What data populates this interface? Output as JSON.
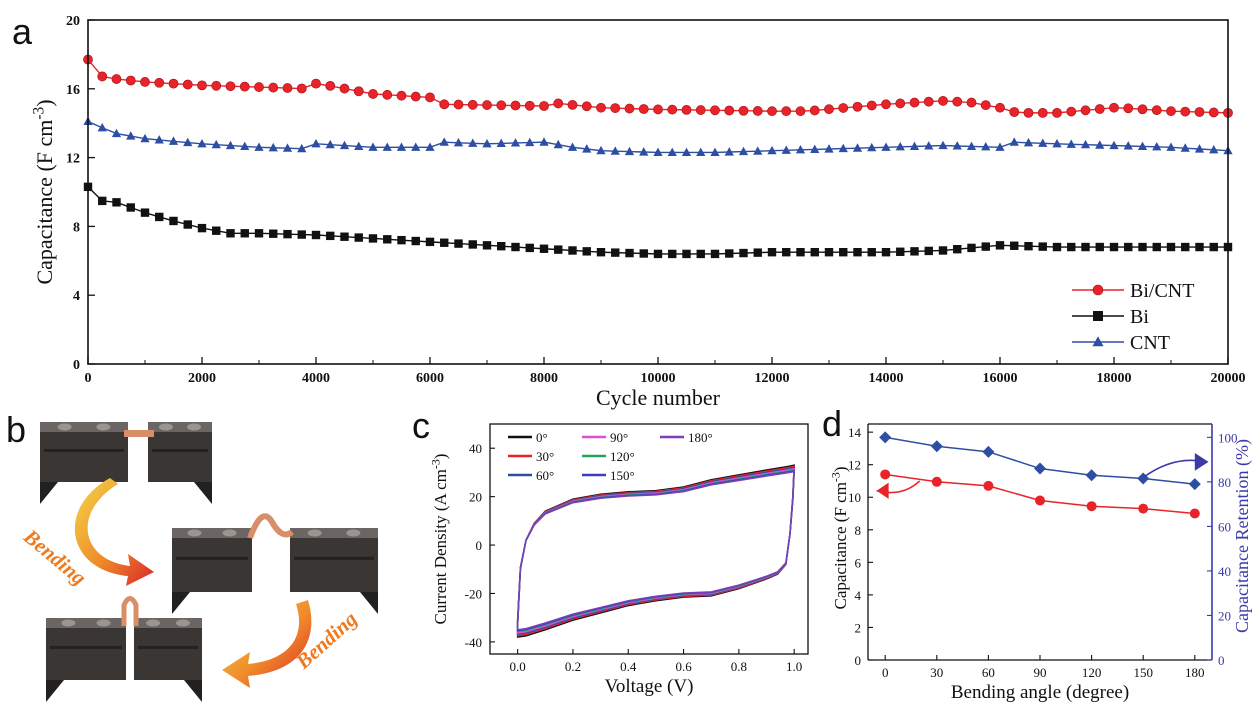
{
  "panel_labels": {
    "a": "a",
    "b": "b",
    "c": "c",
    "d": "d"
  },
  "photo_panel": {
    "bend_label_1": "Bending",
    "bend_label_2": "Bending"
  },
  "colors": {
    "red": "#e8232a",
    "black": "#111111",
    "blue": "#2d4ea3",
    "blue_axis": "#3a3aa8",
    "arrow_orange": "#f07a1e"
  },
  "chart_data": [
    {
      "id": "a",
      "type": "line",
      "xlabel": "Cycle number",
      "ylabel": "Capacitance (F cm",
      "ylabel_sup": "-3",
      "ylabel_close": ")",
      "xlim": [
        0,
        20000
      ],
      "ylim": [
        0,
        20
      ],
      "xticks": [
        0,
        2000,
        4000,
        6000,
        8000,
        10000,
        12000,
        14000,
        16000,
        18000,
        20000
      ],
      "yticks": [
        0,
        4,
        8,
        12,
        16,
        20
      ],
      "legend_position": "bottom-right",
      "series": [
        {
          "name": "Bi/CNT",
          "color": "#e8232a",
          "marker": "circle",
          "anchors": [
            [
              0,
              17.7
            ],
            [
              150,
              16.8
            ],
            [
              400,
              16.6
            ],
            [
              1000,
              16.4
            ],
            [
              2000,
              16.2
            ],
            [
              3000,
              16.1
            ],
            [
              3900,
              16.0
            ],
            [
              4000,
              16.3
            ],
            [
              4200,
              16.2
            ],
            [
              5000,
              15.7
            ],
            [
              6000,
              15.5
            ],
            [
              6200,
              15.1
            ],
            [
              8000,
              15.0
            ],
            [
              8100,
              15.2
            ],
            [
              9000,
              14.9
            ],
            [
              10000,
              14.8
            ],
            [
              12000,
              14.7
            ],
            [
              12600,
              14.7
            ],
            [
              14000,
              15.1
            ],
            [
              15000,
              15.3
            ],
            [
              15500,
              15.2
            ],
            [
              16000,
              14.9
            ],
            [
              16300,
              14.6
            ],
            [
              17000,
              14.6
            ],
            [
              18000,
              14.9
            ],
            [
              18100,
              14.9
            ],
            [
              19000,
              14.7
            ],
            [
              20000,
              14.6
            ]
          ]
        },
        {
          "name": "Bi",
          "color": "#111111",
          "marker": "square",
          "anchors": [
            [
              0,
              10.3
            ],
            [
              200,
              9.5
            ],
            [
              500,
              9.4
            ],
            [
              1000,
              8.8
            ],
            [
              1400,
              8.4
            ],
            [
              2000,
              7.9
            ],
            [
              2500,
              7.6
            ],
            [
              3000,
              7.6
            ],
            [
              4000,
              7.5
            ],
            [
              5000,
              7.3
            ],
            [
              6000,
              7.1
            ],
            [
              7000,
              6.9
            ],
            [
              8000,
              6.7
            ],
            [
              9000,
              6.5
            ],
            [
              10000,
              6.4
            ],
            [
              11000,
              6.4
            ],
            [
              12000,
              6.5
            ],
            [
              13000,
              6.5
            ],
            [
              14000,
              6.5
            ],
            [
              15000,
              6.6
            ],
            [
              16000,
              6.9
            ],
            [
              17000,
              6.8
            ],
            [
              18000,
              6.8
            ],
            [
              19000,
              6.8
            ],
            [
              20000,
              6.8
            ]
          ]
        },
        {
          "name": "CNT",
          "color": "#2d4ea3",
          "marker": "triangle",
          "anchors": [
            [
              0,
              14.1
            ],
            [
              200,
              13.8
            ],
            [
              500,
              13.4
            ],
            [
              1000,
              13.1
            ],
            [
              2000,
              12.8
            ],
            [
              3000,
              12.6
            ],
            [
              3900,
              12.5
            ],
            [
              4000,
              12.8
            ],
            [
              5000,
              12.6
            ],
            [
              6000,
              12.6
            ],
            [
              6200,
              12.9
            ],
            [
              7000,
              12.8
            ],
            [
              8000,
              12.9
            ],
            [
              8500,
              12.6
            ],
            [
              9000,
              12.4
            ],
            [
              10000,
              12.3
            ],
            [
              11000,
              12.3
            ],
            [
              12000,
              12.4
            ],
            [
              13000,
              12.5
            ],
            [
              14000,
              12.6
            ],
            [
              15000,
              12.7
            ],
            [
              16000,
              12.6
            ],
            [
              16200,
              12.9
            ],
            [
              17000,
              12.8
            ],
            [
              18000,
              12.7
            ],
            [
              19000,
              12.6
            ],
            [
              20000,
              12.4
            ]
          ]
        }
      ]
    },
    {
      "id": "c",
      "type": "line",
      "xlabel": "Voltage (V)",
      "ylabel": "Current Density (A cm",
      "ylabel_sup": "-3",
      "ylabel_close": ")",
      "xlim": [
        -0.1,
        1.05
      ],
      "ylim": [
        -45,
        50
      ],
      "xticks": [
        0.0,
        0.2,
        0.4,
        0.6,
        0.8,
        1.0
      ],
      "yticks": [
        -40,
        -20,
        0,
        20,
        40
      ],
      "legend_position": "top-left",
      "series": [
        {
          "name": "0°",
          "color": "#111111",
          "scale": 1.0
        },
        {
          "name": "30°",
          "color": "#e8232a",
          "scale": 0.985
        },
        {
          "name": "60°",
          "color": "#2d4ea3",
          "scale": 0.97
        },
        {
          "name": "90°",
          "color": "#d94fd6",
          "scale": 0.955
        },
        {
          "name": "120°",
          "color": "#21a35a",
          "scale": 0.94
        },
        {
          "name": "150°",
          "color": "#3b3fbf",
          "scale": 0.93
        },
        {
          "name": "180°",
          "color": "#7b3fb7",
          "scale": 0.92
        }
      ]
    },
    {
      "id": "d",
      "type": "line",
      "xlabel": "Bending angle (degree)",
      "ylabel": "Capacitance (F cm",
      "ylabel_sup": "-3",
      "ylabel_close": ")",
      "y2label": "Capacitance Retention (%)",
      "x": [
        0,
        30,
        60,
        90,
        120,
        150,
        180
      ],
      "xlim": [
        -10,
        190
      ],
      "ylim": [
        0,
        14.5
      ],
      "y2lim": [
        0,
        106
      ],
      "xticks": [
        0,
        30,
        60,
        90,
        120,
        150,
        180
      ],
      "yticks": [
        0,
        2,
        4,
        6,
        8,
        10,
        12,
        14
      ],
      "y2ticks": [
        0,
        20,
        40,
        60,
        80,
        100
      ],
      "series": [
        {
          "name": "Capacitance",
          "axis": "left",
          "color": "#e8232a",
          "values": [
            11.4,
            10.95,
            10.7,
            9.8,
            9.45,
            9.3,
            9.0
          ]
        },
        {
          "name": "Capacitance Retention",
          "axis": "right",
          "color": "#2d4ea3",
          "values": [
            100,
            96,
            93.5,
            86,
            83,
            81.5,
            79
          ]
        }
      ]
    }
  ]
}
